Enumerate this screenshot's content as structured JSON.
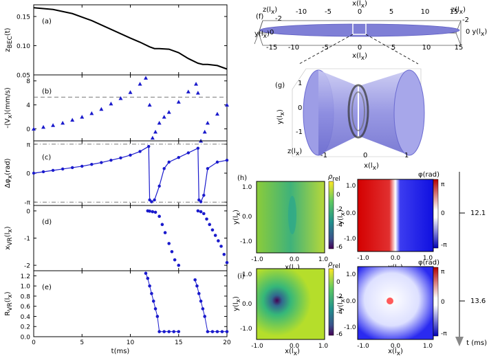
{
  "chart_data": [
    {
      "type": "line",
      "panel": "(a)",
      "ylabel": "z",
      "ylabel_sub": "BEC",
      "ylabel_suffix": "(t)",
      "ylim": [
        0.05,
        0.17
      ],
      "yticks": [
        "0.15",
        "0.10",
        "0.05"
      ],
      "xlim": [
        0,
        20
      ],
      "series": [
        {
          "x": [
            0,
            2,
            4,
            6,
            8,
            10,
            11,
            12,
            12.5,
            13,
            14,
            15,
            16,
            17,
            17.5,
            18,
            19,
            20
          ],
          "y": [
            0.165,
            0.162,
            0.155,
            0.143,
            0.128,
            0.113,
            0.106,
            0.098,
            0.095,
            0.095,
            0.094,
            0.088,
            0.078,
            0.07,
            0.068,
            0.068,
            0.066,
            0.06
          ]
        }
      ]
    },
    {
      "type": "scatter",
      "panel": "(b)",
      "ylabel": "-⟨V",
      "ylabel_sub": "x",
      "ylabel_suffix": "⟩(mm/s)",
      "ylim": [
        -2,
        9
      ],
      "yticks": [
        "8",
        "4",
        "0"
      ],
      "dash_y": 5.3,
      "series": [
        {
          "x": [
            0,
            1,
            2,
            3,
            4,
            5,
            6,
            7,
            8,
            9,
            10,
            11,
            11.6,
            12,
            12.3,
            12.6,
            13,
            13.5,
            14,
            15,
            16,
            16.8,
            17,
            17.3,
            17.7,
            18,
            19,
            20
          ],
          "y": [
            0,
            0.3,
            0.6,
            1.0,
            1.5,
            2.0,
            2.6,
            3.3,
            4.2,
            5.1,
            6.1,
            7.5,
            8.5,
            4.0,
            -1.5,
            -0.5,
            1.0,
            2.0,
            2.8,
            4.5,
            6.2,
            7.5,
            6.0,
            -2.0,
            -0.5,
            1.0,
            2.5,
            4.0
          ]
        }
      ]
    },
    {
      "type": "line",
      "panel": "(c)",
      "ylabel": "Δφ",
      "ylabel_sub": "x",
      "ylabel_suffix": "(rad)",
      "ylim": [
        -3.5,
        3.5
      ],
      "yticks": [
        "π",
        "0",
        "-π"
      ],
      "dash_y": [
        3.14159,
        -3.14159
      ],
      "series": [
        {
          "x": [
            0,
            1,
            2,
            3,
            4,
            5,
            6,
            7,
            8,
            9,
            10,
            11,
            11.9,
            12.0,
            12.2,
            12.5,
            13,
            13.5,
            14,
            15,
            16,
            17,
            17.1,
            17.3,
            17.6,
            18,
            19,
            20
          ],
          "y": [
            0,
            0.15,
            0.3,
            0.45,
            0.6,
            0.75,
            0.95,
            1.15,
            1.4,
            1.65,
            1.95,
            2.35,
            2.9,
            -2.9,
            -3.1,
            -2.9,
            -1.4,
            0.5,
            1.2,
            1.7,
            2.2,
            2.7,
            -2.9,
            -3.1,
            -2.4,
            0.5,
            1.2,
            1.4
          ]
        }
      ]
    },
    {
      "type": "scatter",
      "panel": "(d)",
      "ylabel": "x",
      "ylabel_sub": "VR",
      "ylabel_suffix": "(l",
      "ylabel_tail": "x",
      "ylabel_end": ")",
      "ylim": [
        -2.2,
        0.2
      ],
      "yticks": [
        "0",
        "-1",
        "-2"
      ],
      "series": [
        {
          "x": [
            11.8,
            12,
            12.3,
            12.6,
            13,
            13.3,
            13.6,
            14,
            14.3,
            14.6,
            15,
            17,
            17.3,
            17.6,
            17.9,
            18.2,
            18.5,
            18.8,
            19.1,
            19.4,
            19.7,
            20
          ],
          "y": [
            0,
            -0.01,
            -0.03,
            -0.05,
            -0.2,
            -0.5,
            -0.8,
            -1.2,
            -1.5,
            -1.8,
            -2.0,
            0,
            -0.03,
            -0.1,
            -0.3,
            -0.5,
            -0.7,
            -0.9,
            -1.1,
            -1.3,
            -1.6,
            -1.9
          ]
        }
      ]
    },
    {
      "type": "scatter",
      "panel": "(e)",
      "ylabel": "R",
      "ylabel_sub": "VR",
      "ylabel_suffix": "(l",
      "ylabel_tail": "x",
      "ylabel_end": ")",
      "ylim": [
        0,
        1.3
      ],
      "yticks": [
        "1.2",
        "1.0",
        "0.8",
        "0.6",
        "0.4",
        "0.2",
        "0.0"
      ],
      "xlabel": "t(ms)",
      "xticks": [
        "0",
        "5",
        "10",
        "15",
        "20"
      ],
      "series": [
        {
          "x": [
            11.6,
            11.8,
            12,
            12.2,
            12.4,
            12.6,
            12.8,
            13,
            13.5,
            14,
            14.5,
            15,
            16.7,
            16.9,
            17.1,
            17.3,
            17.5,
            17.7,
            18,
            18.5,
            19,
            19.5,
            20
          ],
          "y": [
            1.25,
            1.15,
            1.0,
            0.85,
            0.7,
            0.55,
            0.4,
            0.1,
            0.1,
            0.1,
            0.1,
            0.1,
            1.12,
            1.0,
            0.85,
            0.7,
            0.55,
            0.4,
            0.1,
            0.1,
            0.1,
            0.1,
            0.1
          ]
        }
      ]
    }
  ],
  "panel_f": {
    "label": "(f)",
    "xlabel_top": "x(l",
    "xlabel_bottom": "x(l",
    "sub": "x",
    "ticks": [
      "-10",
      "-5",
      "0",
      "5",
      "10",
      "15"
    ],
    "ticks_bottom": [
      "-10",
      "-5",
      "0",
      "5",
      "10",
      "15"
    ],
    "zlabel_left": "z(l",
    "zlabel_right": "z(l",
    "ylabel_left": "y(l",
    "ylabel_right": "y(l",
    "zval_left": "-2",
    "zval_right": "-2",
    "yval_left": "0",
    "yval_right": "0",
    "left_tick": "-15",
    "color": "#7f7fd6"
  },
  "panel_g": {
    "label": "(g)",
    "ylabel": "y(l",
    "xlabel": "x(l",
    "zlabel": "z(l",
    "sub": "x",
    "yticks": [
      "1",
      "0",
      "-1"
    ],
    "xticks": [
      "-1",
      "0",
      "1"
    ]
  },
  "panel_h": {
    "label": "(h)",
    "rho": "ρ",
    "rho_sub": "rel",
    "phi": "φ(rad)",
    "cb_rho": [
      "0",
      "-2",
      "-4",
      "-6"
    ],
    "cb_phi": [
      "π",
      "0",
      "-π"
    ],
    "ticks": [
      "1.0",
      "0.0",
      "-1.0"
    ],
    "xticks": [
      "-1.0",
      "0.0",
      "1.0"
    ],
    "ylabel": "y(l",
    "xlabel": "x(l",
    "sub": "x",
    "time": "12.1"
  },
  "panel_i": {
    "label": "(i)",
    "time": "13.6"
  },
  "time_axis_label": "t (ms)"
}
